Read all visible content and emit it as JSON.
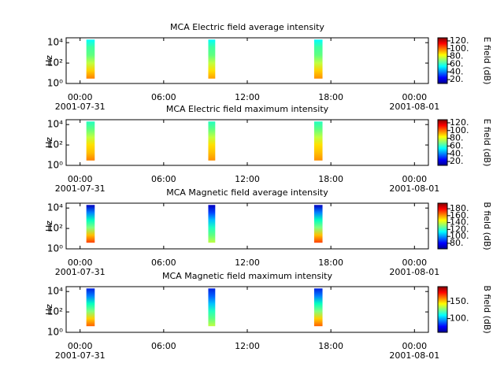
{
  "chart_data": [
    {
      "type": "spectrogram",
      "title": "MCA  Electric field average intensity",
      "ylabel": "Hz",
      "colorbar_label": "E field (dB)",
      "xlim": [
        -1,
        25
      ],
      "xticks": [
        {
          "value": 0,
          "label": "00:00"
        },
        {
          "value": 6,
          "label": "06:00"
        },
        {
          "value": 12,
          "label": "12:00"
        },
        {
          "value": 18,
          "label": "18:00"
        },
        {
          "value": 24,
          "label": "00:00"
        }
      ],
      "xdates": [
        {
          "value": 0,
          "label": "2001-07-31"
        },
        {
          "value": 24,
          "label": "2001-08-01"
        }
      ],
      "ylim": [
        1,
        30000
      ],
      "log_y": true,
      "yticks": [
        {
          "value": 1,
          "label": "10⁰"
        },
        {
          "value": 100,
          "label": "10²"
        },
        {
          "value": 10000,
          "label": "10⁴"
        }
      ],
      "clim": [
        10,
        128
      ],
      "cticks": [
        {
          "value": 20,
          "label": "20."
        },
        {
          "value": 40,
          "label": "40."
        },
        {
          "value": 60,
          "label": "60."
        },
        {
          "value": 80,
          "label": "80."
        },
        {
          "value": 100,
          "label": "100."
        },
        {
          "value": 120,
          "label": "120."
        }
      ],
      "colormap": [
        "#00008f",
        "#0000ff",
        "#0080ff",
        "#00ffff",
        "#80ff80",
        "#ffff00",
        "#ff8000",
        "#ff0000",
        "#800000"
      ],
      "bursts": [
        {
          "x": [
            0.45,
            1.05
          ],
          "y": [
            3,
            20000
          ],
          "colors": [
            "#ff8000",
            "#ffd000",
            "#c0ff40",
            "#60ff80",
            "#40ffa0",
            "#00ffff"
          ]
        },
        {
          "x": [
            9.2,
            9.7
          ],
          "y": [
            3,
            20000
          ],
          "colors": [
            "#ffa000",
            "#ffe000",
            "#c0ff40",
            "#60ff80",
            "#40ffa0",
            "#00ffff"
          ]
        },
        {
          "x": [
            16.8,
            17.4
          ],
          "y": [
            3,
            20000
          ],
          "colors": [
            "#ff9000",
            "#ffd000",
            "#c0ff40",
            "#60ff80",
            "#40ffa0",
            "#00ffff"
          ]
        }
      ]
    },
    {
      "type": "spectrogram",
      "title": "MCA  Electric field maximum intensity",
      "ylabel": "Hz",
      "colorbar_label": "E field (dB)",
      "xlim": [
        -1,
        25
      ],
      "xticks": [
        {
          "value": 0,
          "label": "00:00"
        },
        {
          "value": 6,
          "label": "06:00"
        },
        {
          "value": 12,
          "label": "12:00"
        },
        {
          "value": 18,
          "label": "18:00"
        },
        {
          "value": 24,
          "label": "00:00"
        }
      ],
      "xdates": [
        {
          "value": 0,
          "label": "2001-07-31"
        },
        {
          "value": 24,
          "label": "2001-08-01"
        }
      ],
      "ylim": [
        1,
        30000
      ],
      "log_y": true,
      "yticks": [
        {
          "value": 1,
          "label": "10⁰"
        },
        {
          "value": 100,
          "label": "10²"
        },
        {
          "value": 10000,
          "label": "10⁴"
        }
      ],
      "clim": [
        10,
        128
      ],
      "cticks": [
        {
          "value": 20,
          "label": "20."
        },
        {
          "value": 40,
          "label": "40."
        },
        {
          "value": 60,
          "label": "60."
        },
        {
          "value": 80,
          "label": "80."
        },
        {
          "value": 100,
          "label": "100."
        },
        {
          "value": 120,
          "label": "120."
        }
      ],
      "colormap": [
        "#00008f",
        "#0000ff",
        "#0080ff",
        "#00ffff",
        "#80ff80",
        "#ffff00",
        "#ff8000",
        "#ff0000",
        "#800000"
      ],
      "bursts": [
        {
          "x": [
            0.45,
            1.05
          ],
          "y": [
            3,
            20000
          ],
          "colors": [
            "#ff8000",
            "#ffc000",
            "#ffe000",
            "#c0ff40",
            "#60ff80",
            "#20ffc0"
          ]
        },
        {
          "x": [
            9.2,
            9.7
          ],
          "y": [
            3,
            20000
          ],
          "colors": [
            "#ff9000",
            "#ffc000",
            "#ffe000",
            "#c0ff40",
            "#60ff80",
            "#20ffc0"
          ]
        },
        {
          "x": [
            16.8,
            17.4
          ],
          "y": [
            3,
            20000
          ],
          "colors": [
            "#ff9000",
            "#ffc000",
            "#ffe000",
            "#c0ff40",
            "#60ff80",
            "#20ffc0"
          ]
        }
      ]
    },
    {
      "type": "spectrogram",
      "title": "MCA  Magnetic field average intensity",
      "ylabel": "Hz",
      "colorbar_label": "B field (dB)",
      "xlim": [
        -1,
        25
      ],
      "xticks": [
        {
          "value": 0,
          "label": "00:00"
        },
        {
          "value": 6,
          "label": "06:00"
        },
        {
          "value": 12,
          "label": "12:00"
        },
        {
          "value": 18,
          "label": "18:00"
        },
        {
          "value": 24,
          "label": "00:00"
        }
      ],
      "xdates": [
        {
          "value": 0,
          "label": "2001-07-31"
        },
        {
          "value": 24,
          "label": "2001-08-01"
        }
      ],
      "ylim": [
        1,
        30000
      ],
      "log_y": true,
      "yticks": [
        {
          "value": 1,
          "label": "10⁰"
        },
        {
          "value": 100,
          "label": "10²"
        },
        {
          "value": 10000,
          "label": "10⁴"
        }
      ],
      "clim": [
        64,
        196
      ],
      "cticks": [
        {
          "value": 80,
          "label": "80."
        },
        {
          "value": 100,
          "label": "100."
        },
        {
          "value": 120,
          "label": "120."
        },
        {
          "value": 140,
          "label": "140."
        },
        {
          "value": 160,
          "label": "160."
        },
        {
          "value": 180,
          "label": "180."
        }
      ],
      "colormap": [
        "#00008f",
        "#0000ff",
        "#0080ff",
        "#00ffff",
        "#80ff80",
        "#ffff00",
        "#ff8000",
        "#ff0000",
        "#800000"
      ],
      "bursts": [
        {
          "x": [
            0.45,
            1.05
          ],
          "y": [
            4,
            20000
          ],
          "colors": [
            "#ff4000",
            "#ffc000",
            "#80ff80",
            "#00ffc0",
            "#0080ff",
            "#0000c0"
          ]
        },
        {
          "x": [
            9.2,
            9.7
          ],
          "y": [
            4,
            20000
          ],
          "colors": [
            "#c0ff40",
            "#60ff80",
            "#20ffc0",
            "#00c0ff",
            "#0040ff",
            "#0000c0"
          ]
        },
        {
          "x": [
            16.8,
            17.4
          ],
          "y": [
            4,
            20000
          ],
          "colors": [
            "#ff4000",
            "#ffc000",
            "#80ff80",
            "#00ffc0",
            "#0080ff",
            "#0000c0"
          ]
        }
      ]
    },
    {
      "type": "spectrogram",
      "title": "MCA  Magnetic field maximum intensity",
      "ylabel": "Hz",
      "colorbar_label": "B field (dB)",
      "xlim": [
        -1,
        25
      ],
      "xticks": [
        {
          "value": 0,
          "label": "00:00"
        },
        {
          "value": 6,
          "label": "06:00"
        },
        {
          "value": 12,
          "label": "12:00"
        },
        {
          "value": 18,
          "label": "18:00"
        },
        {
          "value": 24,
          "label": "00:00"
        }
      ],
      "xdates": [
        {
          "value": 0,
          "label": "2001-07-31"
        },
        {
          "value": 24,
          "label": "2001-08-01"
        }
      ],
      "ylim": [
        1,
        30000
      ],
      "log_y": true,
      "yticks": [
        {
          "value": 1,
          "label": "10⁰"
        },
        {
          "value": 100,
          "label": "10²"
        },
        {
          "value": 10000,
          "label": "10⁴"
        }
      ],
      "clim": [
        60,
        193
      ],
      "cticks": [
        {
          "value": 100,
          "label": "100."
        },
        {
          "value": 150,
          "label": "150."
        }
      ],
      "colormap": [
        "#00008f",
        "#0000ff",
        "#0080ff",
        "#00ffff",
        "#80ff80",
        "#ffff00",
        "#ff8000",
        "#ff0000",
        "#800000"
      ],
      "bursts": [
        {
          "x": [
            0.45,
            1.05
          ],
          "y": [
            4,
            20000
          ],
          "colors": [
            "#ff6000",
            "#ffd000",
            "#80ff80",
            "#00ffc0",
            "#0080ff",
            "#0020e0"
          ]
        },
        {
          "x": [
            9.2,
            9.7
          ],
          "y": [
            4,
            20000
          ],
          "colors": [
            "#c0ff40",
            "#60ff80",
            "#20ffc0",
            "#00c0ff",
            "#0060ff",
            "#0020e0"
          ]
        },
        {
          "x": [
            16.8,
            17.4
          ],
          "y": [
            4,
            20000
          ],
          "colors": [
            "#ff6000",
            "#ffd000",
            "#80ff80",
            "#00ffc0",
            "#0080ff",
            "#0020e0"
          ]
        }
      ]
    }
  ]
}
